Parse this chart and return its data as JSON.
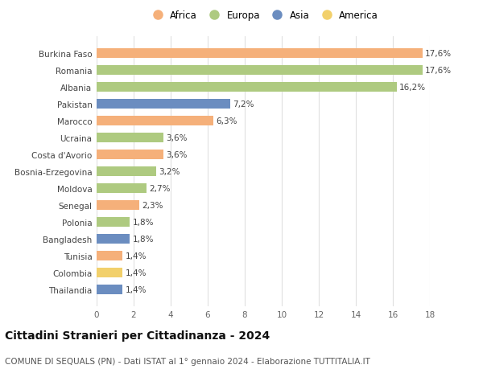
{
  "countries": [
    "Burkina Faso",
    "Romania",
    "Albania",
    "Pakistan",
    "Marocco",
    "Ucraina",
    "Costa d'Avorio",
    "Bosnia-Erzegovina",
    "Moldova",
    "Senegal",
    "Polonia",
    "Bangladesh",
    "Tunisia",
    "Colombia",
    "Thailandia"
  ],
  "values": [
    17.6,
    17.6,
    16.2,
    7.2,
    6.3,
    3.6,
    3.6,
    3.2,
    2.7,
    2.3,
    1.8,
    1.8,
    1.4,
    1.4,
    1.4
  ],
  "labels": [
    "17,6%",
    "17,6%",
    "16,2%",
    "7,2%",
    "6,3%",
    "3,6%",
    "3,6%",
    "3,2%",
    "2,7%",
    "2,3%",
    "1,8%",
    "1,8%",
    "1,4%",
    "1,4%",
    "1,4%"
  ],
  "colors": [
    "#F5B07A",
    "#AECA80",
    "#AECA80",
    "#6B8DC0",
    "#F5B07A",
    "#AECA80",
    "#F5B07A",
    "#AECA80",
    "#AECA80",
    "#F5B07A",
    "#AECA80",
    "#6B8DC0",
    "#F5B07A",
    "#F2D06B",
    "#6B8DC0"
  ],
  "legend_labels": [
    "Africa",
    "Europa",
    "Asia",
    "America"
  ],
  "legend_colors": [
    "#F5B07A",
    "#AECA80",
    "#6B8DC0",
    "#F2D06B"
  ],
  "title": "Cittadini Stranieri per Cittadinanza - 2024",
  "subtitle": "COMUNE DI SEQUALS (PN) - Dati ISTAT al 1° gennaio 2024 - Elaborazione TUTTITALIA.IT",
  "xlim": [
    0,
    18
  ],
  "xticks": [
    0,
    2,
    4,
    6,
    8,
    10,
    12,
    14,
    16,
    18
  ],
  "background_color": "#ffffff",
  "grid_color": "#e0e0e0",
  "bar_height": 0.55,
  "title_fontsize": 10,
  "subtitle_fontsize": 7.5,
  "label_fontsize": 7.5,
  "tick_fontsize": 7.5,
  "legend_fontsize": 8.5
}
